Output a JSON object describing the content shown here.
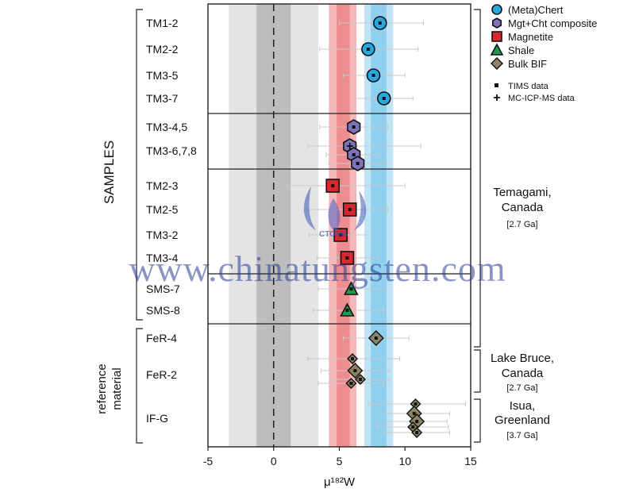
{
  "chart_data": {
    "type": "scatter",
    "xlabel": "μ¹⁸²W",
    "xlim": [
      -5,
      15
    ],
    "xticks": [
      -5,
      0,
      5,
      10,
      15
    ],
    "left_group_labels": [
      {
        "id": "samples",
        "text": "SAMPLES"
      },
      {
        "id": "reference",
        "lines": [
          "reference",
          "material"
        ]
      }
    ],
    "bands": [
      {
        "name": "outer-gray",
        "from": -3.4,
        "to": 3.4,
        "color": "#e4e4e4"
      },
      {
        "name": "inner-gray",
        "from": -1.3,
        "to": 1.3,
        "color": "#bdbdbd"
      },
      {
        "name": "red-outer",
        "from": 4.2,
        "to": 6.3,
        "color": "#f5b7b8"
      },
      {
        "name": "red-inner",
        "from": 4.8,
        "to": 5.8,
        "color": "#ee8d8f"
      },
      {
        "name": "blue-outer",
        "from": 6.9,
        "to": 9.1,
        "color": "#bfe4f5"
      },
      {
        "name": "blue-inner",
        "from": 7.4,
        "to": 8.6,
        "color": "#8fd0ee"
      }
    ],
    "rows": [
      {
        "label": "TM1-2",
        "group": "Temagami"
      },
      {
        "label": "TM2-2",
        "group": "Temagami"
      },
      {
        "label": "TM3-5",
        "group": "Temagami"
      },
      {
        "label": "TM3-7",
        "group": "Temagami"
      },
      {
        "label": "TM3-4,5",
        "group": "Temagami"
      },
      {
        "label": "TM3-6,7,8",
        "group": "Temagami"
      },
      {
        "label": "TM2-3",
        "group": "Temagami"
      },
      {
        "label": "TM2-5",
        "group": "Temagami"
      },
      {
        "label": "TM3-2",
        "group": "Temagami"
      },
      {
        "label": "TM3-4",
        "group": "Temagami"
      },
      {
        "label": "SMS-7",
        "group": "Temagami"
      },
      {
        "label": "SMS-8",
        "group": "Temagami"
      },
      {
        "label": "FeR-4",
        "group": "Lake Bruce"
      },
      {
        "label": "FeR-2",
        "group": "Lake Bruce"
      },
      {
        "label": "IF-G",
        "group": "Isua"
      }
    ],
    "points": [
      {
        "row": "TM1-2",
        "x": 8.1,
        "lo": 5.0,
        "hi": 11.4,
        "series": "(Meta)Chert",
        "method": "TIMS"
      },
      {
        "row": "TM2-2",
        "x": 7.2,
        "lo": 3.5,
        "hi": 11.0,
        "series": "(Meta)Chert",
        "method": "TIMS"
      },
      {
        "row": "TM3-5",
        "x": 7.6,
        "lo": 5.3,
        "hi": 10.0,
        "series": "(Meta)Chert",
        "method": "TIMS"
      },
      {
        "row": "TM3-7",
        "x": 8.4,
        "lo": 6.2,
        "hi": 10.6,
        "series": "(Meta)Chert",
        "method": "TIMS"
      },
      {
        "row": "TM3-4,5",
        "x": 6.1,
        "lo": 3.5,
        "hi": 8.7,
        "series": "Mgt+Cht composite",
        "method": "TIMS"
      },
      {
        "row": "TM3-6,7,8",
        "x": 5.8,
        "lo": 2.6,
        "hi": 11.2,
        "series": "Mgt+Cht composite",
        "method": "MC-ICP-MS",
        "dy": -6
      },
      {
        "row": "TM3-6,7,8",
        "x": 6.1,
        "lo": 4.0,
        "hi": 8.0,
        "series": "Mgt+Cht composite",
        "method": "TIMS",
        "dy": 5
      },
      {
        "row": "TM3-6,7,8",
        "x": 6.4,
        "lo": 4.2,
        "hi": 8.6,
        "series": "Mgt+Cht composite",
        "method": "TIMS",
        "dy": 16
      },
      {
        "row": "TM2-3",
        "x": 4.5,
        "lo": 1.0,
        "hi": 10.0,
        "series": "Magnetite",
        "method": "TIMS"
      },
      {
        "row": "TM2-5",
        "x": 5.8,
        "lo": 2.5,
        "hi": 8.7,
        "series": "Magnetite",
        "method": "TIMS"
      },
      {
        "row": "TM3-2",
        "x": 5.1,
        "lo": 2.7,
        "hi": 7.5,
        "series": "Magnetite",
        "method": "TIMS"
      },
      {
        "row": "TM3-4",
        "x": 5.6,
        "lo": 3.3,
        "hi": 7.9,
        "series": "Magnetite",
        "method": "TIMS"
      },
      {
        "row": "SMS-7",
        "x": 5.9,
        "lo": 3.4,
        "hi": 8.6,
        "series": "Shale",
        "method": "TIMS"
      },
      {
        "row": "SMS-8",
        "x": 5.6,
        "lo": 3.0,
        "hi": 8.4,
        "series": "Shale",
        "method": "TIMS"
      },
      {
        "row": "FeR-4",
        "x": 7.8,
        "lo": 5.3,
        "hi": 10.3,
        "series": "Bulk BIF",
        "method": "TIMS"
      },
      {
        "row": "FeR-2",
        "x": 6.0,
        "lo": 2.6,
        "hi": 9.6,
        "series": "Bulk BIF",
        "method": "TIMS",
        "dy": -20
      },
      {
        "row": "FeR-2",
        "x": 6.2,
        "lo": 3.6,
        "hi": 8.8,
        "series": "Bulk BIF",
        "method": "TIMS",
        "dy": -5
      },
      {
        "row": "FeR-2",
        "x": 6.6,
        "lo": 4.4,
        "hi": 8.8,
        "series": "Bulk BIF",
        "method": "TIMS",
        "dy": 6
      },
      {
        "row": "FeR-2",
        "x": 5.9,
        "lo": 3.4,
        "hi": 8.4,
        "series": "Bulk BIF",
        "method": "TIMS",
        "dy": 11
      },
      {
        "row": "IF-G",
        "x": 10.8,
        "lo": 7.2,
        "hi": 14.6,
        "series": "Bulk BIF",
        "method": "TIMS",
        "dy": -18
      },
      {
        "row": "IF-G",
        "x": 10.7,
        "lo": 8.0,
        "hi": 13.4,
        "series": "Bulk BIF",
        "method": "TIMS",
        "dy": -6
      },
      {
        "row": "IF-G",
        "x": 10.9,
        "lo": 8.6,
        "hi": 13.2,
        "series": "Bulk BIF",
        "method": "TIMS",
        "dy": 4
      },
      {
        "row": "IF-G",
        "x": 10.6,
        "lo": 7.9,
        "hi": 13.3,
        "series": "Bulk BIF",
        "method": "TIMS",
        "dy": 11
      },
      {
        "row": "IF-G",
        "x": 10.9,
        "lo": 8.4,
        "hi": 13.4,
        "series": "Bulk BIF",
        "method": "TIMS",
        "dy": 18
      }
    ],
    "legend": [
      {
        "name": "(Meta)Chert",
        "shape": "circle",
        "color": "#29a8e0"
      },
      {
        "name": "Mgt+Cht composite",
        "shape": "hexagon",
        "color": "#7d74b8"
      },
      {
        "name": "Magnetite",
        "shape": "square",
        "color": "#d9272e"
      },
      {
        "name": "Shale",
        "shape": "triangle",
        "color": "#1f9a4c"
      },
      {
        "name": "Bulk BIF",
        "shape": "diamond",
        "color": "#8d8466"
      }
    ],
    "method_legend": [
      {
        "name": "TIMS data",
        "symbol": "square"
      },
      {
        "name": "MC-ICP-MS data",
        "symbol": "plus"
      }
    ],
    "locations": [
      {
        "name_lines": [
          "Temagami,",
          "Canada"
        ],
        "age": "[2.7 Ga]"
      },
      {
        "name_lines": [
          "Lake Bruce,",
          "Canada"
        ],
        "age": "[2.7 Ga]"
      },
      {
        "name_lines": [
          "Isua,",
          "Greenland"
        ],
        "age": "[3.7 Ga]"
      }
    ]
  },
  "watermark": {
    "text": "www.chinatungsten.com",
    "logo_text": "CTOMS"
  }
}
